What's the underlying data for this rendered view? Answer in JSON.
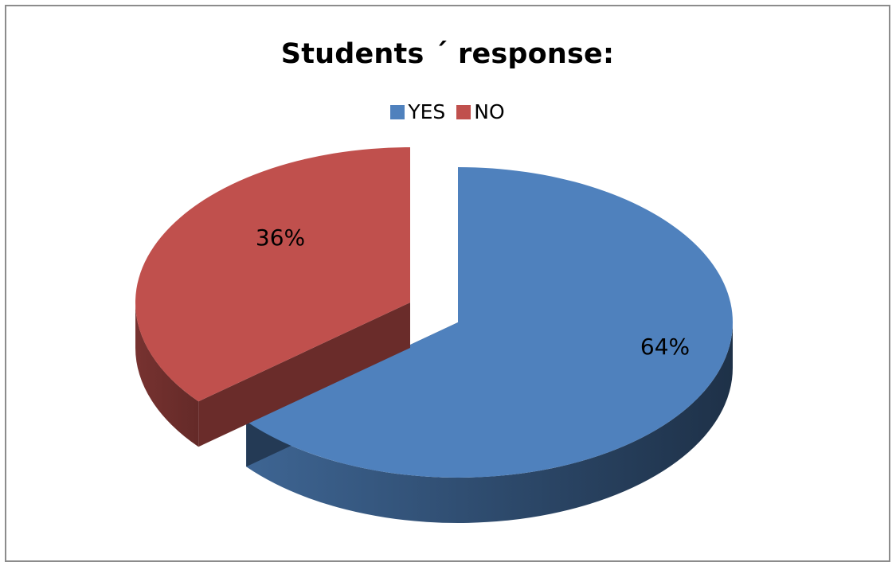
{
  "chart_data": {
    "type": "pie",
    "title": "Students ´ response:",
    "categories": [
      "YES",
      "NO"
    ],
    "values": [
      64,
      36
    ],
    "data_labels": [
      "64%",
      "36%"
    ],
    "colors": [
      "#4F81BD",
      "#C0504D"
    ],
    "legend_position": "top",
    "style": "3d-exploded"
  }
}
